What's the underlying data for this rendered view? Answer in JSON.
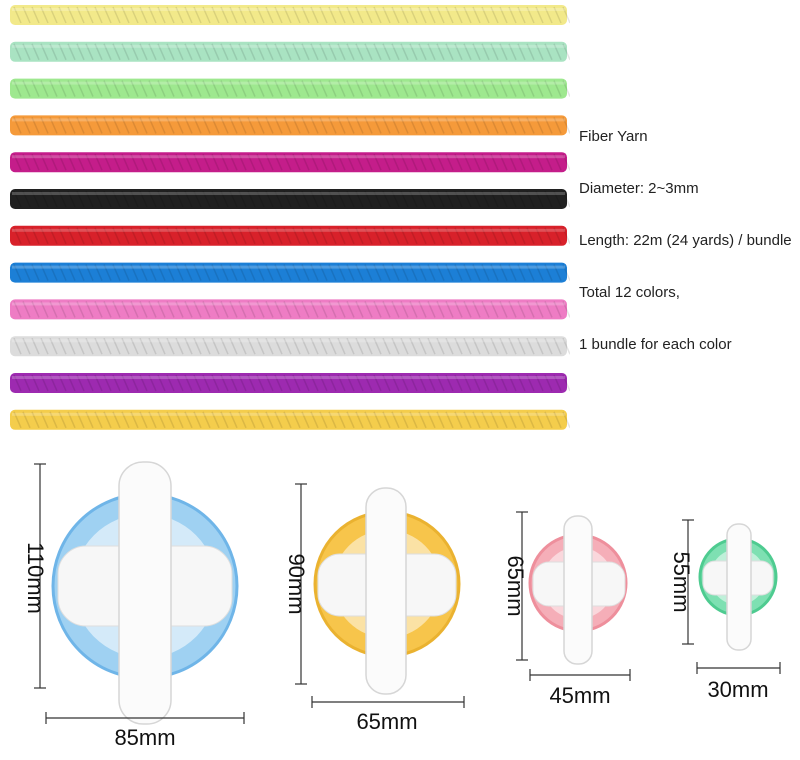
{
  "specs": {
    "lines": [
      "Fiber Yarn",
      "Diameter: 2~3mm",
      "Length: 22m (24 yards) / bundle",
      "Total 12 colors,",
      "1 bundle for each color"
    ]
  },
  "yarn": {
    "strands": [
      {
        "color": "#f2e98a",
        "name": "yellow"
      },
      {
        "color": "#a9e3c2",
        "name": "mint"
      },
      {
        "color": "#9ee88f",
        "name": "light-green"
      },
      {
        "color": "#f59a3a",
        "name": "orange"
      },
      {
        "color": "#c41d8a",
        "name": "magenta"
      },
      {
        "color": "#202020",
        "name": "black"
      },
      {
        "color": "#d8212a",
        "name": "red"
      },
      {
        "color": "#1c7fd6",
        "name": "blue"
      },
      {
        "color": "#ee7cc4",
        "name": "pink"
      },
      {
        "color": "#dcdcdc",
        "name": "light-gray"
      },
      {
        "color": "#9d2ab0",
        "name": "purple"
      },
      {
        "color": "#f4cd4c",
        "name": "golden-yellow"
      }
    ]
  },
  "pompom_makers": [
    {
      "name": "blue",
      "color": "#9fd1f2",
      "edge": "#6fb5e8",
      "height_label": "110mm",
      "width_label": "85mm"
    },
    {
      "name": "yellow",
      "color": "#f7c54b",
      "edge": "#eab230",
      "height_label": "90mm",
      "width_label": "65mm"
    },
    {
      "name": "pink",
      "color": "#f5aeb8",
      "edge": "#ee8f9c",
      "height_label": "65mm",
      "width_label": "45mm"
    },
    {
      "name": "green",
      "color": "#7ee0b2",
      "edge": "#4ecb90",
      "height_label": "55mm",
      "width_label": "30mm"
    }
  ]
}
